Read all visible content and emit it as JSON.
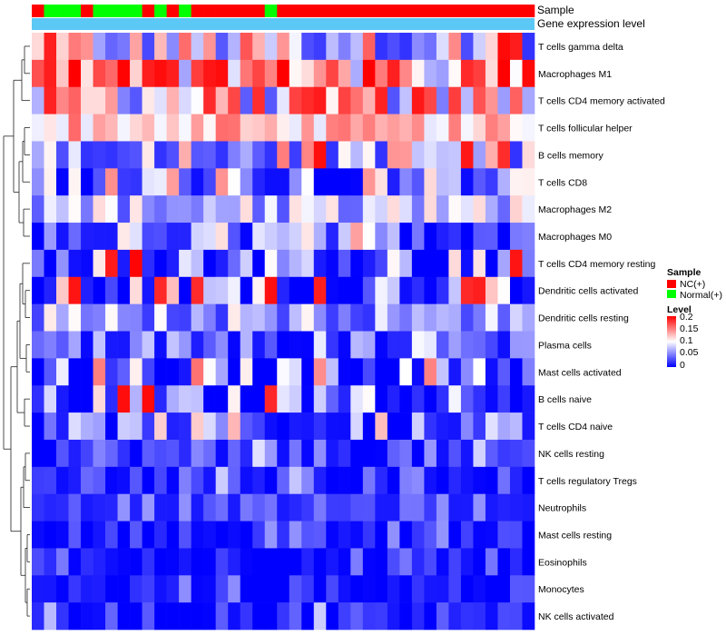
{
  "chart_data": {
    "type": "heatmap",
    "title": "",
    "annotation_tracks": [
      {
        "name": "Sample",
        "label": "Sample"
      },
      {
        "name": "Gene expression level",
        "label": "Gene expression level"
      }
    ],
    "sample_groups": {
      "NC": "NC(+)",
      "Normal": "Normal(+)",
      "colors": {
        "NC": "#ff0000",
        "Normal": "#00ff00"
      }
    },
    "sample_annotation": [
      "NC",
      "Normal",
      "Normal",
      "Normal",
      "NC",
      "Normal",
      "Normal",
      "Normal",
      "Normal",
      "NC",
      "Normal",
      "NC",
      "Normal",
      "NC",
      "NC",
      "NC",
      "NC",
      "NC",
      "NC",
      "Normal",
      "NC",
      "NC",
      "NC",
      "NC",
      "NC",
      "NC",
      "NC",
      "NC",
      "NC",
      "NC",
      "NC",
      "NC",
      "NC",
      "NC",
      "NC",
      "NC",
      "NC",
      "NC",
      "NC",
      "NC",
      "NC"
    ],
    "expression_track_color": "#5bc8f5",
    "rows": [
      "T cells gamma delta",
      "Macrophages M1",
      "T cells CD4 memory activated",
      "T cells follicular helper",
      "B cells memory",
      "T cells CD8",
      "Macrophages M2",
      "Macrophages M0",
      "T cells CD4 memory resting",
      "Dendritic cells activated",
      "Dendritic cells resting",
      "Plasma cells",
      "Mast cells activated",
      "B cells naive",
      "T cells CD4 naive",
      "NK cells resting",
      "T cells regulatory  Tregs",
      "Neutrophils",
      "Mast cells resting",
      "Eosinophils",
      "Monocytes",
      "NK cells activated"
    ],
    "row_profiles": [
      [
        0.02,
        0.2,
        0.09
      ],
      [
        0.06,
        0.2,
        0.15
      ],
      [
        0.02,
        0.2,
        0.11
      ],
      [
        0.09,
        0.16,
        0.12
      ],
      [
        0.02,
        0.2,
        0.08
      ],
      [
        0.0,
        0.15,
        0.06
      ],
      [
        0.03,
        0.12,
        0.07
      ],
      [
        0.0,
        0.15,
        0.05
      ],
      [
        0.0,
        0.2,
        0.04
      ],
      [
        0.0,
        0.2,
        0.05
      ],
      [
        0.02,
        0.11,
        0.06
      ],
      [
        0.0,
        0.1,
        0.04
      ],
      [
        0.0,
        0.16,
        0.04
      ],
      [
        0.0,
        0.2,
        0.03
      ],
      [
        0.0,
        0.13,
        0.03
      ],
      [
        0.0,
        0.09,
        0.02
      ],
      [
        0.0,
        0.08,
        0.02
      ],
      [
        0.01,
        0.06,
        0.025
      ],
      [
        0.0,
        0.06,
        0.01
      ],
      [
        0.0,
        0.05,
        0.01
      ],
      [
        0.0,
        0.06,
        0.008
      ],
      [
        0.0,
        0.08,
        0.01
      ]
    ],
    "values_note": "values estimated from color scale; generated per row from min/max/mean profile",
    "color_scale": {
      "min": 0,
      "mid": 0.1,
      "max": 0.2,
      "low_color": "#0000ff",
      "mid_color": "#ffffff",
      "high_color": "#ff0000"
    },
    "legend": {
      "sample_title": "Sample",
      "level_title": "Level",
      "ticks": [
        "0.2",
        "0.15",
        "0.1",
        "0.05",
        "0"
      ],
      "tick_values": [
        0.2,
        0.15,
        0.1,
        0.05,
        0
      ]
    },
    "dendrogram": "row clustering tree on left"
  }
}
